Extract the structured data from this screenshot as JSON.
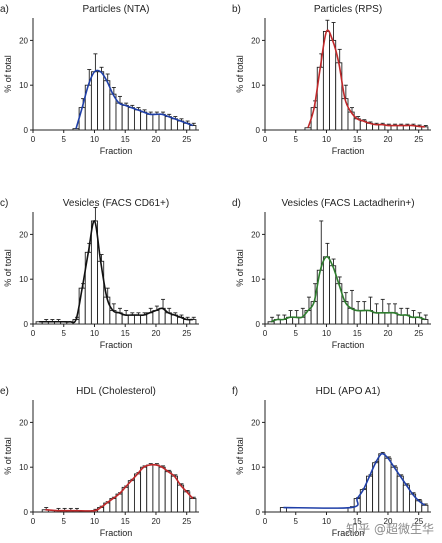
{
  "chart_data": [
    {
      "type": "bar",
      "letter": "a)",
      "title": "Particles (NTA)",
      "xlabel": "Fraction",
      "ylabel": "% of total",
      "xlim": [
        0,
        27
      ],
      "ylim": [
        0,
        25
      ],
      "xticks": [
        "0",
        "5",
        "10",
        "15",
        "20",
        "25"
      ],
      "yticks": [
        "0",
        "10",
        "20"
      ],
      "line_color": "#1f3fa8",
      "x": [
        7,
        8,
        9,
        10,
        11,
        12,
        13,
        14,
        15,
        16,
        17,
        18,
        19,
        20,
        21,
        22,
        23,
        24,
        25,
        26
      ],
      "values": [
        0.3,
        5,
        10,
        13,
        13,
        11,
        8,
        6,
        5.5,
        5,
        4.5,
        4,
        3.5,
        3.5,
        3.5,
        3,
        2.5,
        2,
        1.5,
        1
      ],
      "errors": [
        0,
        2,
        3.5,
        4,
        1,
        1.5,
        1.5,
        1.5,
        0.5,
        0.5,
        0.5,
        0.5,
        0.5,
        0.5,
        0.5,
        0.5,
        0.5,
        0.5,
        0.5,
        0.5
      ]
    },
    {
      "type": "bar",
      "letter": "b)",
      "title": "Particles (RPS)",
      "xlabel": "Fraction",
      "ylabel": "% of total",
      "xlim": [
        0,
        27
      ],
      "ylim": [
        0,
        25
      ],
      "xticks": [
        "0",
        "5",
        "10",
        "15",
        "20",
        "25"
      ],
      "yticks": [
        "0",
        "10",
        "20"
      ],
      "line_color": "#c0282a",
      "x": [
        7,
        8,
        9,
        10,
        11,
        12,
        13,
        14,
        15,
        16,
        17,
        18,
        19,
        20,
        21,
        22,
        23,
        24,
        25,
        26
      ],
      "values": [
        0.5,
        5,
        14,
        22,
        20,
        15,
        7,
        4,
        2.5,
        2,
        1.5,
        1.2,
        1.2,
        1,
        1,
        1,
        1,
        1,
        0.8,
        0.7
      ],
      "errors": [
        0,
        1.5,
        3,
        2.5,
        4,
        3,
        3,
        1,
        0.5,
        0.3,
        0.3,
        0.3,
        0.3,
        0.3,
        0.3,
        0.3,
        0.3,
        0.3,
        0.3,
        0.3
      ]
    },
    {
      "type": "bar",
      "letter": "c)",
      "title": "Vesicles (FACS CD61+)",
      "xlabel": "Fraction",
      "ylabel": "% of total",
      "xlim": [
        0,
        27
      ],
      "ylim": [
        0,
        25
      ],
      "xticks": [
        "0",
        "5",
        "10",
        "15",
        "20",
        "25"
      ],
      "yticks": [
        "0",
        "10",
        "20"
      ],
      "line_color": "#111111",
      "x": [
        1,
        2,
        3,
        4,
        5,
        6,
        7,
        8,
        9,
        10,
        11,
        12,
        13,
        14,
        15,
        16,
        17,
        18,
        19,
        20,
        21,
        22,
        23,
        24,
        25,
        26
      ],
      "values": [
        0.5,
        0.5,
        0.5,
        0.5,
        0.5,
        0.5,
        1,
        8,
        16,
        23,
        14,
        6,
        3,
        2.5,
        2,
        2,
        2,
        2,
        2.5,
        3,
        3.5,
        2.5,
        2,
        1.5,
        1,
        1
      ],
      "errors": [
        0,
        0.5,
        0.5,
        0.5,
        0,
        0,
        0.5,
        1,
        2,
        3,
        1.5,
        2,
        1.5,
        1,
        1,
        0.5,
        0.5,
        0.5,
        1,
        1,
        2,
        1,
        0.5,
        0.5,
        0.5,
        0.5
      ]
    },
    {
      "type": "bar",
      "letter": "d)",
      "title": "Vesicles (FACS Lactadherin+)",
      "xlabel": "Fraction",
      "ylabel": "% of total",
      "xlim": [
        0,
        27
      ],
      "ylim": [
        0,
        25
      ],
      "xticks": [
        "0",
        "5",
        "10",
        "15",
        "20",
        "25"
      ],
      "yticks": [
        "0",
        "10",
        "20"
      ],
      "line_color": "#2e7d2e",
      "x": [
        1,
        2,
        3,
        4,
        5,
        6,
        7,
        8,
        9,
        10,
        11,
        12,
        13,
        14,
        15,
        16,
        17,
        18,
        19,
        20,
        21,
        22,
        23,
        24,
        25,
        26
      ],
      "values": [
        0.5,
        1,
        1,
        1.5,
        1.5,
        1.5,
        3,
        5,
        12,
        15,
        13,
        9,
        5,
        3.5,
        3,
        3,
        3,
        2.5,
        2.5,
        2.5,
        2.5,
        2,
        2,
        1.5,
        1.5,
        1
      ],
      "errors": [
        1,
        1,
        1,
        1.5,
        1.5,
        2,
        3,
        4,
        11,
        3,
        1.5,
        1.5,
        2,
        4,
        2,
        2,
        3,
        2,
        3,
        2,
        2,
        1.5,
        1.5,
        1.5,
        1,
        1
      ]
    },
    {
      "type": "bar",
      "letter": "e)",
      "title": "HDL (Cholesterol)",
      "xlabel": "Fraction",
      "ylabel": "% of total",
      "xlim": [
        0,
        27
      ],
      "ylim": [
        0,
        25
      ],
      "xticks": [
        "0",
        "5",
        "10",
        "15",
        "20",
        "25"
      ],
      "yticks": [
        "0",
        "10",
        "20"
      ],
      "line_color": "#c0282a",
      "x": [
        2,
        4,
        5,
        6,
        7,
        10,
        11,
        12,
        13,
        14,
        15,
        16,
        17,
        18,
        19,
        20,
        21,
        22,
        23,
        24,
        25,
        26
      ],
      "values": [
        0.5,
        0.3,
        0.3,
        0.3,
        0.3,
        0.3,
        1,
        2,
        3,
        4,
        5.5,
        7,
        8.5,
        10,
        10.5,
        10.5,
        10,
        9,
        8,
        6,
        4.5,
        3
      ],
      "errors": [
        0.5,
        0.5,
        0.5,
        0.5,
        0.5,
        0.3,
        0.3,
        0.3,
        0.3,
        0.3,
        0.3,
        0.3,
        0.3,
        0.3,
        0.3,
        0.3,
        0.3,
        0.3,
        0.3,
        0.3,
        0.3,
        0.3
      ]
    },
    {
      "type": "bar",
      "letter": "f)",
      "title": "HDL (APO A1)",
      "xlabel": "Fraction",
      "ylabel": "% of total",
      "xlim": [
        0,
        27
      ],
      "ylim": [
        0,
        25
      ],
      "xticks": [
        "0",
        "5",
        "10",
        "15",
        "20",
        "25"
      ],
      "yticks": [
        "0",
        "10",
        "20"
      ],
      "line_color": "#1f3fa8",
      "x": [
        3,
        14,
        15,
        16,
        17,
        18,
        19,
        20,
        21,
        22,
        23,
        24,
        25,
        26
      ],
      "values": [
        1,
        1,
        3,
        5,
        8,
        11,
        13,
        12,
        10,
        8,
        6,
        4,
        2.5,
        1.5
      ],
      "errors": [
        0,
        0.2,
        0.2,
        0.2,
        0.3,
        0.3,
        0.3,
        0.3,
        0.3,
        0.3,
        0.3,
        0.3,
        0.3,
        0.3
      ]
    }
  ],
  "watermark": "知乎 @超微生华"
}
